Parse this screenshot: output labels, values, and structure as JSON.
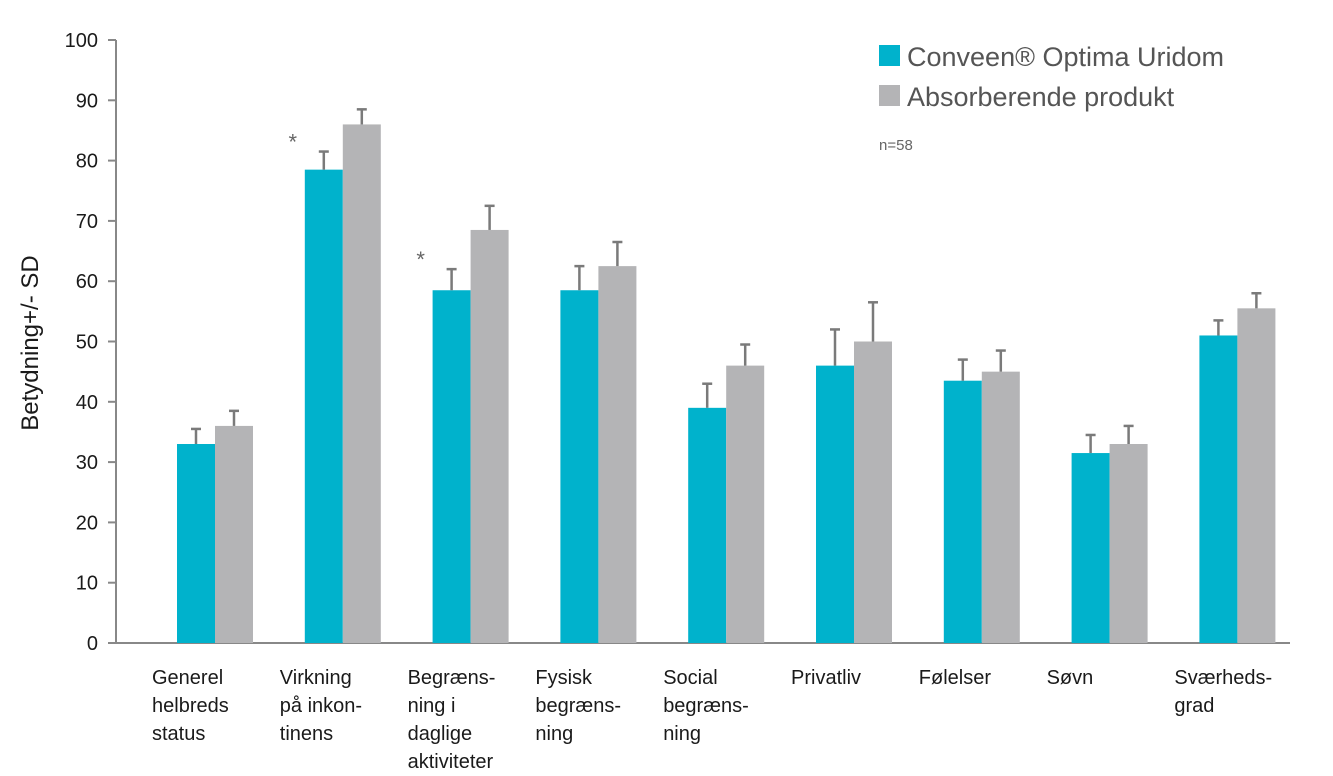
{
  "chart_data": {
    "type": "bar",
    "ylabel": "Betydning+/- SD",
    "ylim": [
      0,
      100
    ],
    "yticks": [
      0,
      10,
      20,
      30,
      40,
      50,
      60,
      70,
      80,
      90,
      100
    ],
    "categories": [
      [
        "Generel",
        "helbreds",
        "status"
      ],
      [
        "Virkning",
        "på inkon-",
        "tinens"
      ],
      [
        "Begræns-",
        "ning i",
        "daglige",
        "aktiviteter"
      ],
      [
        "Fysisk",
        "begræns-",
        "ning"
      ],
      [
        "Social",
        "begræns-",
        "ning"
      ],
      [
        "Privatliv"
      ],
      [
        "Følelser"
      ],
      [
        "Søvn"
      ],
      [
        "Sværheds-",
        "grad"
      ]
    ],
    "series": [
      {
        "name": "Conveen® Optima Uridom",
        "color": "#00b2cc",
        "values": [
          33,
          78.5,
          58.5,
          58.5,
          39,
          46,
          43.5,
          31.5,
          51
        ],
        "errors": [
          2.5,
          3,
          3.5,
          4,
          4,
          6,
          3.5,
          3,
          2.5
        ]
      },
      {
        "name": "Absorberende produkt",
        "color": "#b4b4b6",
        "values": [
          36,
          86,
          68.5,
          62.5,
          46,
          50,
          45,
          33,
          55.5
        ],
        "errors": [
          2.5,
          2.5,
          4,
          4,
          3.5,
          6.5,
          3.5,
          3,
          2.5
        ]
      }
    ],
    "significance": [
      {
        "category_index": 1,
        "label": "*"
      },
      {
        "category_index": 2,
        "label": "*"
      }
    ],
    "annotation": "n=58",
    "legend_position": "top-right",
    "grid": false
  }
}
